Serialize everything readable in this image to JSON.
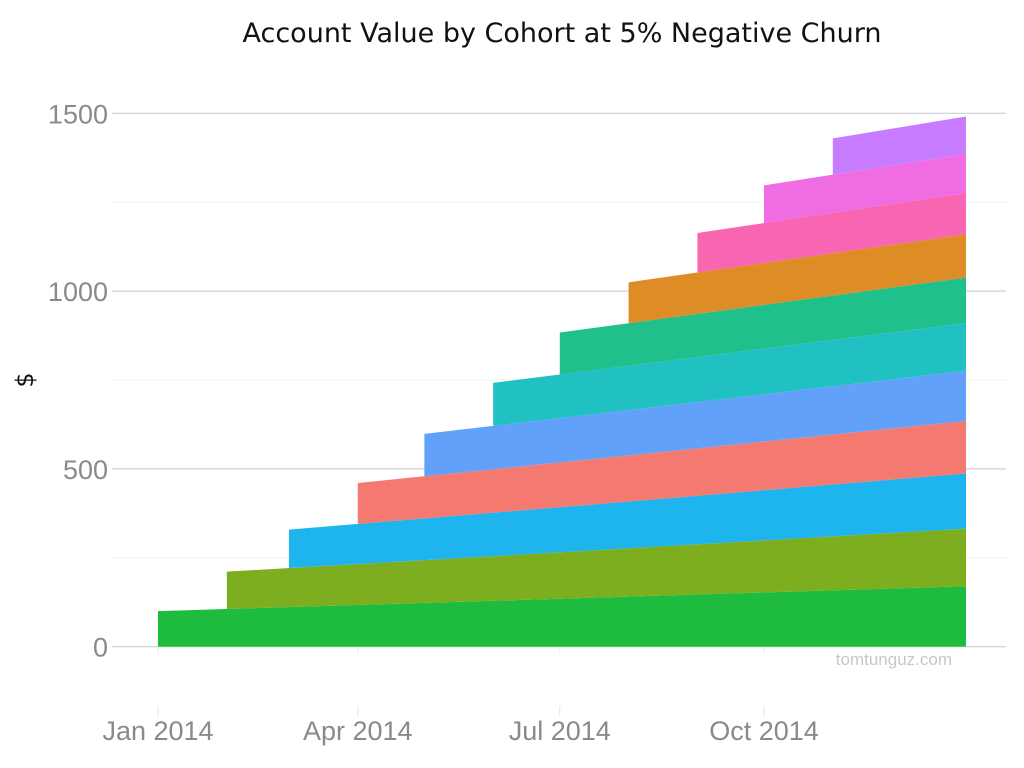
{
  "chart_data": {
    "type": "area",
    "stacked": true,
    "title": "Account Value by Cohort at 5% Negative Churn",
    "xlabel": "",
    "ylabel": "$",
    "ylim": [
      -150,
      1560
    ],
    "y_ticks": [
      0,
      500,
      1000,
      1500
    ],
    "x_ticks": [
      "Jan 2014",
      "Apr 2014",
      "Jul 2014",
      "Oct 2014"
    ],
    "x_range": [
      "2014-01-01",
      "2014-12-31"
    ],
    "grid": true,
    "legend": "none",
    "series": [
      {
        "start": "2014-01-01",
        "x": [
          "2014-01-01",
          "2014-12-31"
        ],
        "y": [
          100,
          170
        ],
        "color": "#1DBB3E"
      },
      {
        "start": "2014-02-01",
        "x": [
          "2014-02-01",
          "2014-12-31"
        ],
        "y": [
          105,
          162
        ],
        "color": "#7CAE1F"
      },
      {
        "start": "2014-03-01",
        "x": [
          "2014-03-01",
          "2014-12-31"
        ],
        "y": [
          108,
          155
        ],
        "color": "#1EB4EE"
      },
      {
        "start": "2014-04-01",
        "x": [
          "2014-04-01",
          "2014-12-31"
        ],
        "y": [
          115,
          148
        ],
        "color": "#F47A71"
      },
      {
        "start": "2014-05-01",
        "x": [
          "2014-05-01",
          "2014-12-31"
        ],
        "y": [
          119,
          141
        ],
        "color": "#62A1FA"
      },
      {
        "start": "2014-06-01",
        "x": [
          "2014-06-01",
          "2014-12-31"
        ],
        "y": [
          121,
          134
        ],
        "color": "#21C0C3"
      },
      {
        "start": "2014-07-01",
        "x": [
          "2014-07-01",
          "2014-12-31"
        ],
        "y": [
          118,
          128
        ],
        "color": "#1FC08B"
      },
      {
        "start": "2014-08-01",
        "x": [
          "2014-08-01",
          "2014-12-31"
        ],
        "y": [
          115,
          122
        ],
        "color": "#DE8C26"
      },
      {
        "start": "2014-09-01",
        "x": [
          "2014-09-01",
          "2014-12-31"
        ],
        "y": [
          111,
          116
        ],
        "color": "#F865B0"
      },
      {
        "start": "2014-10-01",
        "x": [
          "2014-10-01",
          "2014-12-31"
        ],
        "y": [
          106,
          110
        ],
        "color": "#EF6CE3"
      },
      {
        "start": "2014-11-01",
        "x": [
          "2014-11-01",
          "2014-12-31"
        ],
        "y": [
          102,
          105
        ],
        "color": "#C77CFF"
      }
    ]
  },
  "watermark": "tomtunguz.com"
}
